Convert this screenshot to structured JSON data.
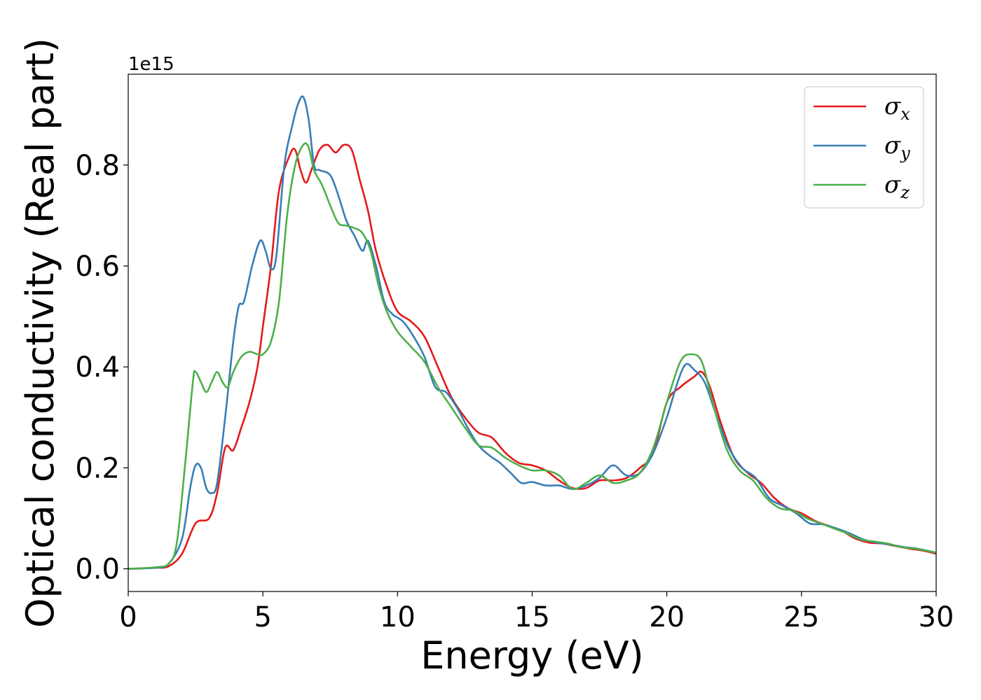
{
  "chart_data": {
    "type": "line",
    "xlabel": "Energy (eV)",
    "ylabel": "Optical conductivity (Real part)",
    "y_offset_label": "1e15",
    "xlim": [
      0,
      30
    ],
    "ylim": [
      -0.045,
      0.98
    ],
    "x_ticks": [
      0,
      5,
      10,
      15,
      20,
      25,
      30
    ],
    "x_tick_labels": [
      "0",
      "5",
      "10",
      "15",
      "20",
      "25",
      "30"
    ],
    "y_ticks": [
      0.0,
      0.2,
      0.4,
      0.6,
      0.8
    ],
    "y_tick_labels": [
      "0.0",
      "0.2",
      "0.4",
      "0.6",
      "0.8"
    ],
    "grid": false,
    "legend_position": "top-right",
    "series": [
      {
        "name": "σ",
        "subscript": "x",
        "color": "#e41a1c",
        "points": [
          [
            0,
            0
          ],
          [
            1,
            0.002
          ],
          [
            1.5,
            0.005
          ],
          [
            2,
            0.03
          ],
          [
            2.5,
            0.09
          ],
          [
            3,
            0.1
          ],
          [
            3.3,
            0.15
          ],
          [
            3.6,
            0.24
          ],
          [
            3.9,
            0.235
          ],
          [
            4.2,
            0.28
          ],
          [
            4.5,
            0.33
          ],
          [
            4.8,
            0.4
          ],
          [
            5.0,
            0.48
          ],
          [
            5.3,
            0.6
          ],
          [
            5.6,
            0.75
          ],
          [
            6.0,
            0.82
          ],
          [
            6.2,
            0.83
          ],
          [
            6.4,
            0.79
          ],
          [
            6.6,
            0.765
          ],
          [
            6.8,
            0.79
          ],
          [
            7.1,
            0.83
          ],
          [
            7.4,
            0.84
          ],
          [
            7.7,
            0.825
          ],
          [
            8.0,
            0.84
          ],
          [
            8.3,
            0.83
          ],
          [
            8.6,
            0.77
          ],
          [
            8.9,
            0.71
          ],
          [
            9.2,
            0.63
          ],
          [
            9.6,
            0.56
          ],
          [
            10.0,
            0.51
          ],
          [
            10.5,
            0.49
          ],
          [
            11.0,
            0.46
          ],
          [
            11.5,
            0.4
          ],
          [
            12.0,
            0.34
          ],
          [
            12.5,
            0.3
          ],
          [
            13.0,
            0.27
          ],
          [
            13.5,
            0.26
          ],
          [
            14.0,
            0.23
          ],
          [
            14.5,
            0.21
          ],
          [
            15.0,
            0.205
          ],
          [
            15.5,
            0.195
          ],
          [
            16.0,
            0.175
          ],
          [
            16.5,
            0.16
          ],
          [
            17.0,
            0.16
          ],
          [
            17.5,
            0.175
          ],
          [
            18.0,
            0.175
          ],
          [
            18.5,
            0.18
          ],
          [
            19.0,
            0.2
          ],
          [
            19.5,
            0.23
          ],
          [
            20.0,
            0.33
          ],
          [
            20.5,
            0.36
          ],
          [
            21.0,
            0.38
          ],
          [
            21.3,
            0.39
          ],
          [
            21.6,
            0.36
          ],
          [
            22.0,
            0.29
          ],
          [
            22.5,
            0.22
          ],
          [
            23.0,
            0.19
          ],
          [
            23.5,
            0.17
          ],
          [
            24.0,
            0.14
          ],
          [
            24.5,
            0.12
          ],
          [
            25.0,
            0.11
          ],
          [
            25.5,
            0.095
          ],
          [
            26.0,
            0.085
          ],
          [
            26.5,
            0.075
          ],
          [
            27.0,
            0.06
          ],
          [
            27.5,
            0.052
          ],
          [
            28.0,
            0.05
          ],
          [
            28.5,
            0.045
          ],
          [
            29.0,
            0.04
          ],
          [
            29.5,
            0.036
          ],
          [
            30.0,
            0.03
          ]
        ]
      },
      {
        "name": "σ",
        "subscript": "y",
        "color": "#377eb8",
        "points": [
          [
            0,
            0
          ],
          [
            1,
            0.002
          ],
          [
            1.5,
            0.01
          ],
          [
            2,
            0.06
          ],
          [
            2.3,
            0.16
          ],
          [
            2.5,
            0.205
          ],
          [
            2.7,
            0.2
          ],
          [
            2.9,
            0.16
          ],
          [
            3.1,
            0.15
          ],
          [
            3.3,
            0.17
          ],
          [
            3.6,
            0.3
          ],
          [
            3.9,
            0.45
          ],
          [
            4.1,
            0.52
          ],
          [
            4.3,
            0.53
          ],
          [
            4.6,
            0.6
          ],
          [
            4.9,
            0.65
          ],
          [
            5.1,
            0.63
          ],
          [
            5.3,
            0.595
          ],
          [
            5.5,
            0.62
          ],
          [
            5.8,
            0.8
          ],
          [
            6.1,
            0.88
          ],
          [
            6.3,
            0.92
          ],
          [
            6.5,
            0.935
          ],
          [
            6.7,
            0.89
          ],
          [
            6.9,
            0.8
          ],
          [
            7.1,
            0.79
          ],
          [
            7.5,
            0.78
          ],
          [
            7.8,
            0.74
          ],
          [
            8.1,
            0.69
          ],
          [
            8.4,
            0.66
          ],
          [
            8.7,
            0.63
          ],
          [
            8.9,
            0.65
          ],
          [
            9.2,
            0.6
          ],
          [
            9.5,
            0.53
          ],
          [
            9.8,
            0.505
          ],
          [
            10.2,
            0.49
          ],
          [
            10.6,
            0.46
          ],
          [
            11.0,
            0.42
          ],
          [
            11.4,
            0.36
          ],
          [
            11.8,
            0.35
          ],
          [
            12.2,
            0.32
          ],
          [
            12.6,
            0.28
          ],
          [
            13.0,
            0.245
          ],
          [
            13.4,
            0.225
          ],
          [
            13.8,
            0.21
          ],
          [
            14.2,
            0.19
          ],
          [
            14.6,
            0.17
          ],
          [
            15.0,
            0.172
          ],
          [
            15.5,
            0.165
          ],
          [
            16.0,
            0.165
          ],
          [
            16.5,
            0.158
          ],
          [
            17.0,
            0.165
          ],
          [
            17.5,
            0.18
          ],
          [
            18.0,
            0.205
          ],
          [
            18.5,
            0.185
          ],
          [
            19.0,
            0.19
          ],
          [
            19.5,
            0.23
          ],
          [
            20.0,
            0.3
          ],
          [
            20.4,
            0.37
          ],
          [
            20.7,
            0.405
          ],
          [
            21.0,
            0.395
          ],
          [
            21.4,
            0.37
          ],
          [
            21.8,
            0.31
          ],
          [
            22.3,
            0.24
          ],
          [
            22.8,
            0.2
          ],
          [
            23.3,
            0.18
          ],
          [
            23.8,
            0.14
          ],
          [
            24.3,
            0.125
          ],
          [
            24.8,
            0.11
          ],
          [
            25.3,
            0.09
          ],
          [
            25.8,
            0.088
          ],
          [
            26.3,
            0.08
          ],
          [
            26.8,
            0.07
          ],
          [
            27.3,
            0.058
          ],
          [
            27.8,
            0.052
          ],
          [
            28.3,
            0.048
          ],
          [
            28.8,
            0.043
          ],
          [
            29.3,
            0.04
          ],
          [
            30.0,
            0.032
          ]
        ]
      },
      {
        "name": "σ",
        "subscript": "z",
        "color": "#4daf4a",
        "points": [
          [
            0,
            0
          ],
          [
            1,
            0.003
          ],
          [
            1.5,
            0.01
          ],
          [
            1.8,
            0.05
          ],
          [
            2.1,
            0.2
          ],
          [
            2.4,
            0.37
          ],
          [
            2.5,
            0.39
          ],
          [
            2.7,
            0.37
          ],
          [
            2.9,
            0.35
          ],
          [
            3.1,
            0.37
          ],
          [
            3.3,
            0.39
          ],
          [
            3.5,
            0.37
          ],
          [
            3.7,
            0.36
          ],
          [
            3.9,
            0.39
          ],
          [
            4.2,
            0.42
          ],
          [
            4.5,
            0.43
          ],
          [
            4.8,
            0.425
          ],
          [
            5.0,
            0.425
          ],
          [
            5.3,
            0.45
          ],
          [
            5.6,
            0.53
          ],
          [
            5.9,
            0.7
          ],
          [
            6.2,
            0.8
          ],
          [
            6.5,
            0.84
          ],
          [
            6.7,
            0.835
          ],
          [
            6.9,
            0.79
          ],
          [
            7.2,
            0.76
          ],
          [
            7.5,
            0.72
          ],
          [
            7.8,
            0.685
          ],
          [
            8.1,
            0.68
          ],
          [
            8.4,
            0.675
          ],
          [
            8.7,
            0.665
          ],
          [
            9.0,
            0.63
          ],
          [
            9.3,
            0.56
          ],
          [
            9.6,
            0.51
          ],
          [
            10.0,
            0.47
          ],
          [
            10.5,
            0.44
          ],
          [
            11.0,
            0.41
          ],
          [
            11.5,
            0.36
          ],
          [
            12.0,
            0.32
          ],
          [
            12.5,
            0.28
          ],
          [
            13.0,
            0.245
          ],
          [
            13.5,
            0.24
          ],
          [
            14.0,
            0.22
          ],
          [
            14.5,
            0.205
          ],
          [
            15.0,
            0.195
          ],
          [
            15.5,
            0.195
          ],
          [
            16.0,
            0.185
          ],
          [
            16.5,
            0.158
          ],
          [
            17.0,
            0.17
          ],
          [
            17.5,
            0.185
          ],
          [
            18.0,
            0.17
          ],
          [
            18.5,
            0.175
          ],
          [
            19.0,
            0.19
          ],
          [
            19.5,
            0.24
          ],
          [
            20.0,
            0.33
          ],
          [
            20.5,
            0.41
          ],
          [
            20.9,
            0.425
          ],
          [
            21.3,
            0.41
          ],
          [
            21.7,
            0.33
          ],
          [
            22.2,
            0.24
          ],
          [
            22.7,
            0.195
          ],
          [
            23.2,
            0.175
          ],
          [
            23.7,
            0.14
          ],
          [
            24.2,
            0.12
          ],
          [
            24.7,
            0.115
          ],
          [
            25.2,
            0.1
          ],
          [
            25.7,
            0.09
          ],
          [
            26.2,
            0.08
          ],
          [
            26.7,
            0.07
          ],
          [
            27.2,
            0.058
          ],
          [
            27.7,
            0.054
          ],
          [
            28.2,
            0.05
          ],
          [
            28.7,
            0.043
          ],
          [
            29.2,
            0.04
          ],
          [
            30.0,
            0.032
          ]
        ]
      }
    ]
  }
}
